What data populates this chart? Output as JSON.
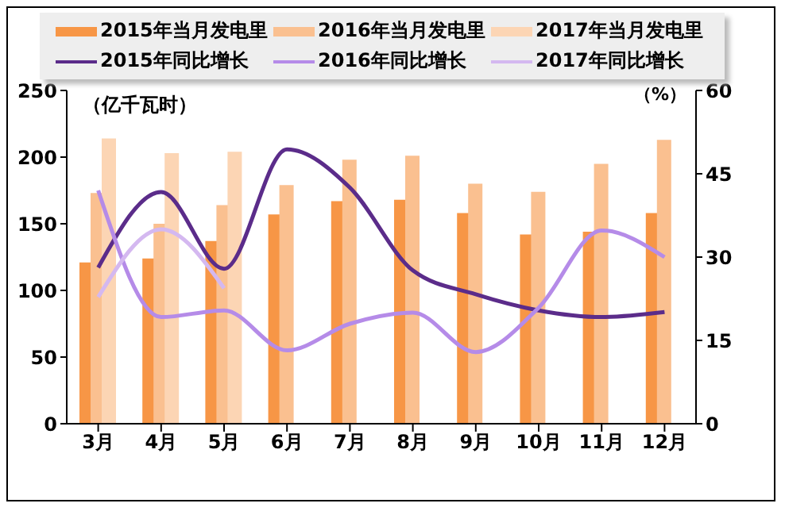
{
  "chart_data": {
    "type": "bar",
    "ylabel": "（亿千瓦时）",
    "y2label": "（%）",
    "categories": [
      "3月",
      "4月",
      "5月",
      "6月",
      "7月",
      "8月",
      "9月",
      "10月",
      "11月",
      "12月"
    ],
    "series": [
      {
        "name": "2015年当月发电里",
        "color": "#f79646",
        "values": [
          121,
          124,
          137,
          157,
          167,
          168,
          158,
          142,
          144,
          158
        ]
      },
      {
        "name": "2016年当月发电里",
        "color": "#fac090",
        "values": [
          173,
          150,
          164,
          179,
          198,
          201,
          180,
          174,
          195,
          213
        ]
      },
      {
        "name": "2017年当月发电里",
        "color": "#fcd5b4",
        "values": [
          214,
          203,
          204,
          null,
          null,
          null,
          null,
          null,
          null,
          null
        ]
      },
      {
        "name": "2015年同比增长",
        "type": "line",
        "axis": "y2",
        "color": "#5b2c8a",
        "values": [
          28.1,
          41.7,
          27.9,
          49.4,
          42.5,
          27.6,
          23.3,
          20.4,
          19.2,
          20.1
        ]
      },
      {
        "name": "2016年同比增长",
        "type": "line",
        "axis": "y2",
        "color": "#b58be8",
        "values": [
          42,
          19.2,
          20.4,
          13.2,
          18,
          20,
          12.9,
          20.9,
          34.8,
          30
        ]
      },
      {
        "name": "2017年同比增长",
        "type": "line",
        "axis": "y2",
        "color": "#d4b8f0",
        "values": [
          22.8,
          35,
          24.4,
          null,
          null,
          null,
          null,
          null,
          null,
          null
        ]
      }
    ],
    "ylim": [
      0,
      250
    ],
    "yticks": [
      0,
      50,
      100,
      150,
      200,
      250
    ],
    "y2lim": [
      0,
      60
    ],
    "y2ticks": [
      0,
      15,
      30,
      45,
      60
    ],
    "grid": false,
    "legend": "top",
    "marker": "none",
    "line_style": "solid"
  }
}
